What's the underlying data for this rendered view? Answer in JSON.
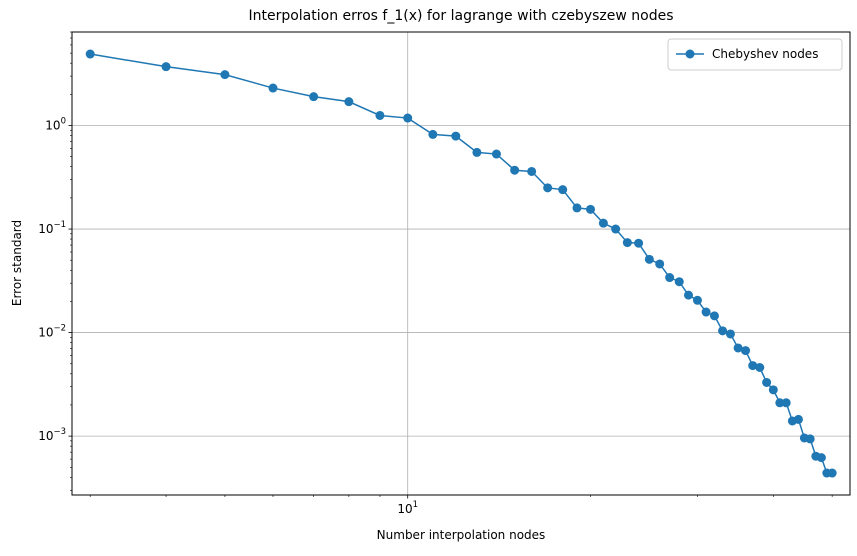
{
  "chart_data": {
    "type": "line",
    "title": "Interpolation erros f_1(x) for lagrange with czebyszew nodes",
    "xlabel": "Number interpolation nodes",
    "ylabel": "Error standard",
    "xscale": "log",
    "yscale": "log",
    "xlim": [
      2.8,
      53.5
    ],
    "ylim": [
      0.00027,
      8
    ],
    "x_ticks": [
      {
        "value": 10,
        "base": "10",
        "exp": "1"
      }
    ],
    "y_ticks": [
      {
        "value": 0.001,
        "base": "10",
        "exp": "−3"
      },
      {
        "value": 0.01,
        "base": "10",
        "exp": "−2"
      },
      {
        "value": 0.1,
        "base": "10",
        "exp": "−1"
      },
      {
        "value": 1,
        "base": "10",
        "exp": "0"
      }
    ],
    "grid": true,
    "legend_position": "top-right",
    "color": "#1f77b4",
    "series": [
      {
        "name": "Chebyshev nodes",
        "x": [
          3,
          4,
          5,
          6,
          7,
          8,
          9,
          10,
          11,
          12,
          13,
          14,
          15,
          16,
          17,
          18,
          19,
          20,
          21,
          22,
          23,
          24,
          25,
          26,
          27,
          28,
          29,
          30,
          31,
          32,
          33,
          34,
          35,
          36,
          37,
          38,
          39,
          40,
          41,
          42,
          43,
          44,
          45,
          46,
          47,
          48,
          49,
          50
        ],
        "y": [
          4.9,
          3.7,
          3.1,
          2.3,
          1.9,
          1.7,
          1.25,
          1.18,
          0.82,
          0.79,
          0.55,
          0.53,
          0.37,
          0.36,
          0.25,
          0.24,
          0.16,
          0.155,
          0.114,
          0.1,
          0.074,
          0.073,
          0.051,
          0.046,
          0.034,
          0.031,
          0.023,
          0.0205,
          0.0158,
          0.0145,
          0.0104,
          0.0097,
          0.0071,
          0.0067,
          0.0048,
          0.0046,
          0.0033,
          0.0028,
          0.0021,
          0.0021,
          0.0014,
          0.00145,
          0.00096,
          0.00094,
          0.00064,
          0.00062,
          0.00044,
          0.00044
        ]
      }
    ]
  }
}
